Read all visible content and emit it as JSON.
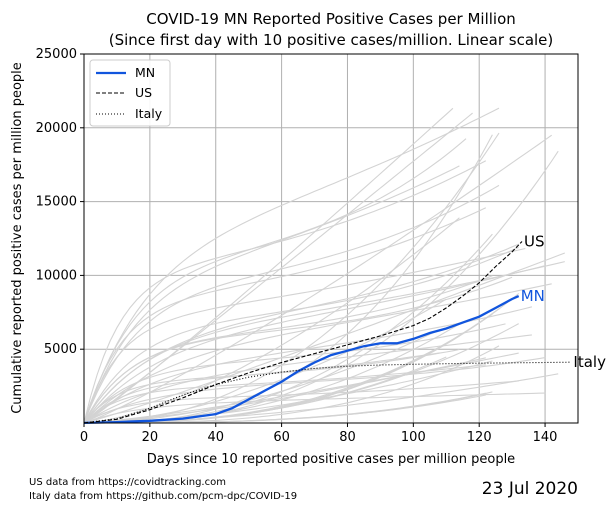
{
  "title_line1": "COVID-19 MN Reported Positive Cases per Million",
  "title_line2": "(Since first day with 10 positive cases/million. Linear scale)",
  "footer": {
    "source_us": "US data from https://covidtracking.com",
    "source_italy": "Italy data from https://github.com/pcm-dpc/COVID-19",
    "date": "23 Jul 2020"
  },
  "colors": {
    "mn": "#1155dd",
    "us": "#000000",
    "italy": "#000000",
    "states": "#d3d3d3",
    "grid": "#b0b0b0"
  },
  "chart_data": {
    "type": "line",
    "title": "COVID-19 MN Reported Positive Cases per Million\n(Since first day with 10 positive cases/million. Linear scale)",
    "xlabel": "Days since 10 reported positive cases per million people",
    "ylabel": "Cumulative reported positive cases per million people",
    "xlim": [
      0,
      150
    ],
    "ylim": [
      0,
      25000
    ],
    "xticks": [
      "0",
      "20",
      "40",
      "60",
      "80",
      "100",
      "120",
      "140"
    ],
    "yticks": [
      "5000",
      "10000",
      "15000",
      "20000",
      "25000"
    ],
    "grid": true,
    "legend_position": "top-left",
    "series": [
      {
        "name": "MN",
        "style": "solid-thick",
        "end_label": "MN",
        "x": [
          0,
          10,
          20,
          30,
          40,
          45,
          50,
          55,
          60,
          65,
          70,
          75,
          80,
          85,
          90,
          95,
          100,
          105,
          110,
          115,
          120,
          125,
          130,
          132
        ],
        "y": [
          10,
          60,
          150,
          300,
          600,
          1000,
          1600,
          2200,
          2800,
          3500,
          4100,
          4600,
          4900,
          5200,
          5400,
          5400,
          5700,
          6100,
          6400,
          6800,
          7200,
          7800,
          8400,
          8600
        ]
      },
      {
        "name": "US",
        "style": "dashed",
        "end_label": "US",
        "x": [
          0,
          10,
          20,
          30,
          40,
          50,
          60,
          70,
          80,
          90,
          100,
          105,
          110,
          115,
          120,
          125,
          130,
          133
        ],
        "y": [
          10,
          250,
          900,
          1700,
          2600,
          3400,
          4100,
          4700,
          5300,
          5900,
          6600,
          7100,
          7800,
          8600,
          9500,
          10600,
          11600,
          12300
        ]
      },
      {
        "name": "Italy",
        "style": "dotted",
        "end_label": "Italy",
        "x": [
          0,
          10,
          20,
          30,
          40,
          50,
          60,
          70,
          80,
          90,
          100,
          110,
          120,
          130,
          140,
          148
        ],
        "y": [
          10,
          300,
          1000,
          1900,
          2600,
          3100,
          3450,
          3700,
          3850,
          3930,
          3980,
          4020,
          4050,
          4080,
          4100,
          4120
        ]
      }
    ],
    "background_series_description": "Unlabeled light gray curves for other states and countries"
  }
}
